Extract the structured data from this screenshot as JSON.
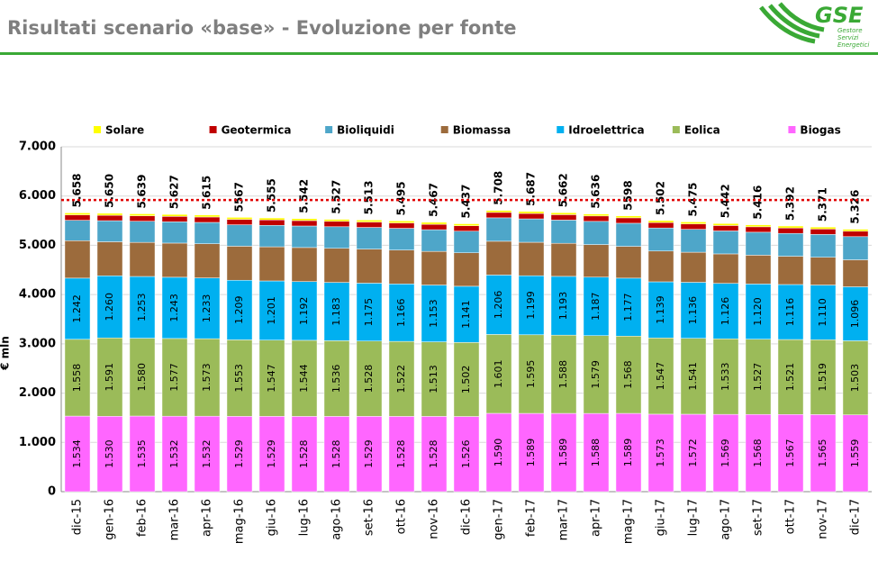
{
  "header": {
    "title": "Risultati scenario «base» - Evoluzione per fonte",
    "logo": {
      "name": "GSE",
      "tagline": [
        "Gestore",
        "Servizi",
        "Energetici"
      ]
    }
  },
  "chart_data": {
    "type": "stacked-bar",
    "ylabel": "€ mln",
    "categories": [
      "dic-15",
      "gen-16",
      "feb-16",
      "mar-16",
      "apr-16",
      "mag-16",
      "giu-16",
      "lug-16",
      "ago-16",
      "set-16",
      "ott-16",
      "nov-16",
      "dic-16",
      "gen-17",
      "feb-17",
      "mar-17",
      "apr-17",
      "mag-17",
      "giu-17",
      "lug-17",
      "ago-17",
      "set-17",
      "ott-17",
      "nov-17",
      "dic-17"
    ],
    "series": [
      {
        "name": "Solare",
        "color": "#ffff00",
        "values": [
          40,
          40,
          40,
          40,
          40,
          40,
          40,
          40,
          40,
          40,
          40,
          40,
          40,
          40,
          40,
          40,
          40,
          40,
          40,
          40,
          40,
          40,
          40,
          40,
          40
        ]
      },
      {
        "name": "Geotermica",
        "color": "#c00000",
        "values": [
          110,
          110,
          110,
          110,
          110,
          110,
          110,
          110,
          110,
          110,
          110,
          110,
          110,
          110,
          110,
          110,
          110,
          110,
          110,
          110,
          110,
          110,
          110,
          110,
          110
        ]
      },
      {
        "name": "Bioliquidi",
        "color": "#4ea6c9",
        "values": [
          414,
          428,
          429,
          432,
          433,
          435,
          435,
          437,
          438,
          440,
          441,
          440,
          439,
          475,
          475,
          471,
          471,
          469,
          468,
          465,
          466,
          466,
          464,
          464,
          470
        ]
      },
      {
        "name": "Biomassa",
        "color": "#9c6b3c",
        "values": [
          760,
          691,
          692,
          693,
          694,
          691,
          693,
          691,
          692,
          691,
          688,
          683,
          679,
          686,
          679,
          671,
          661,
          645,
          625,
          611,
          598,
          585,
          574,
          563,
          548
        ]
      },
      {
        "name": "Idroelettrica",
        "color": "#00b0f0",
        "values": [
          1242,
          1260,
          1253,
          1243,
          1233,
          1209,
          1201,
          1192,
          1183,
          1175,
          1166,
          1153,
          1141,
          1206,
          1199,
          1193,
          1187,
          1177,
          1139,
          1136,
          1126,
          1120,
          1116,
          1110,
          1096
        ],
        "value_labels": [
          "1.242",
          "1.260",
          "1.253",
          "1.243",
          "1.233",
          "1.209",
          "1.201",
          "1.192",
          "1.183",
          "1.175",
          "1.166",
          "1.153",
          "1.141",
          "1.206",
          "1.199",
          "1.193",
          "1.187",
          "1.177",
          "1.139",
          "1.136",
          "1.126",
          "1.120",
          "1.116",
          "1.110",
          "1.096"
        ]
      },
      {
        "name": "Eolica",
        "color": "#9bbb59",
        "values": [
          1558,
          1591,
          1580,
          1577,
          1573,
          1553,
          1547,
          1544,
          1536,
          1528,
          1522,
          1513,
          1502,
          1601,
          1595,
          1588,
          1579,
          1568,
          1547,
          1541,
          1533,
          1527,
          1521,
          1519,
          1503
        ],
        "value_labels": [
          "1.558",
          "1.591",
          "1.580",
          "1.577",
          "1.573",
          "1.553",
          "1.547",
          "1.544",
          "1.536",
          "1.528",
          "1.522",
          "1.513",
          "1.502",
          "1.601",
          "1.595",
          "1.588",
          "1.579",
          "1.568",
          "1.547",
          "1.541",
          "1.533",
          "1.527",
          "1.521",
          "1.519",
          "1.503"
        ]
      },
      {
        "name": "Biogas",
        "color": "#ff66ff",
        "values": [
          1534,
          1530,
          1535,
          1532,
          1532,
          1529,
          1529,
          1528,
          1528,
          1529,
          1528,
          1528,
          1526,
          1590,
          1589,
          1589,
          1588,
          1589,
          1573,
          1572,
          1569,
          1568,
          1567,
          1565,
          1559
        ],
        "value_labels": [
          "1.534",
          "1.530",
          "1.535",
          "1.532",
          "1.532",
          "1.529",
          "1.529",
          "1.528",
          "1.528",
          "1.529",
          "1.528",
          "1.528",
          "1.526",
          "1.590",
          "1.589",
          "1.589",
          "1.588",
          "1.589",
          "1.573",
          "1.572",
          "1.569",
          "1.568",
          "1.567",
          "1.565",
          "1.559"
        ]
      }
    ],
    "totals": {
      "values": [
        5658,
        5650,
        5639,
        5627,
        5615,
        5567,
        5555,
        5542,
        5527,
        5513,
        5495,
        5467,
        5437,
        5708,
        5687,
        5662,
        5636,
        5598,
        5502,
        5475,
        5442,
        5416,
        5392,
        5371,
        5326
      ],
      "value_labels": [
        "5.658",
        "5.650",
        "5.639",
        "5.627",
        "5.615",
        "5567",
        "5.555",
        "5.542",
        "5.527",
        "5.513",
        "5.495",
        "5.467",
        "5.437",
        "5.708",
        "5.687",
        "5.662",
        "5.636",
        "5598",
        "5.502",
        "5.475",
        "5.442",
        "5.416",
        "5.392",
        "5.371",
        "5.326"
      ]
    },
    "reference_line": {
      "value": 5920,
      "color": "#e00000"
    },
    "ylim": [
      0,
      7000
    ],
    "yticks": [
      0,
      {
        "value": 1000,
        "label": "1.000"
      },
      {
        "value": 2000,
        "label": "2.000"
      },
      {
        "value": 3000,
        "label": "3.000"
      },
      {
        "value": 4000,
        "label": "4.000"
      },
      {
        "value": 5000,
        "label": "5.000"
      },
      {
        "value": 6000,
        "label": "6.000"
      },
      {
        "value": 7000,
        "label": "7.000"
      }
    ],
    "grid": true,
    "legend": "top"
  }
}
